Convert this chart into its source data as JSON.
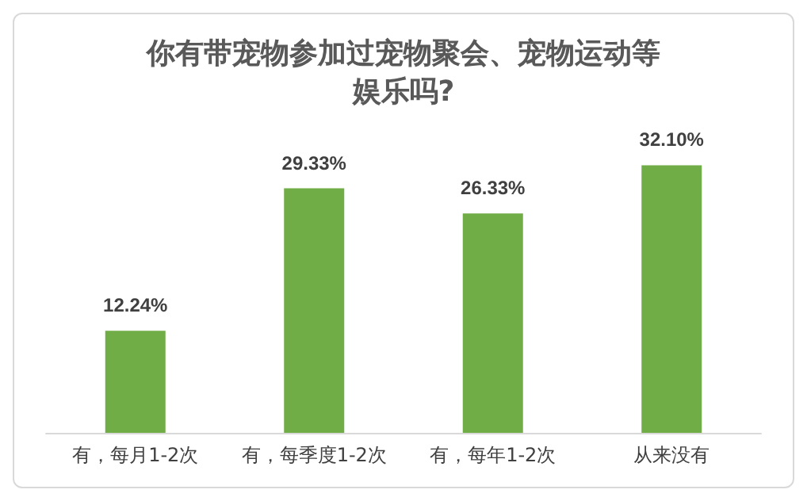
{
  "chart_data": {
    "type": "bar",
    "title": "你有带宠物参加过宠物聚会、宠物运动等娱乐吗?",
    "categories": [
      "有，每月1-2次",
      "有，每季度1-2次",
      "有，每年1-2次",
      "从来没有"
    ],
    "values": [
      12.24,
      29.33,
      26.33,
      32.1
    ],
    "value_labels": [
      "12.24%",
      "29.33%",
      "26.33%",
      "32.10%"
    ],
    "color": "#70ad47",
    "tick_labels": "x"
  }
}
